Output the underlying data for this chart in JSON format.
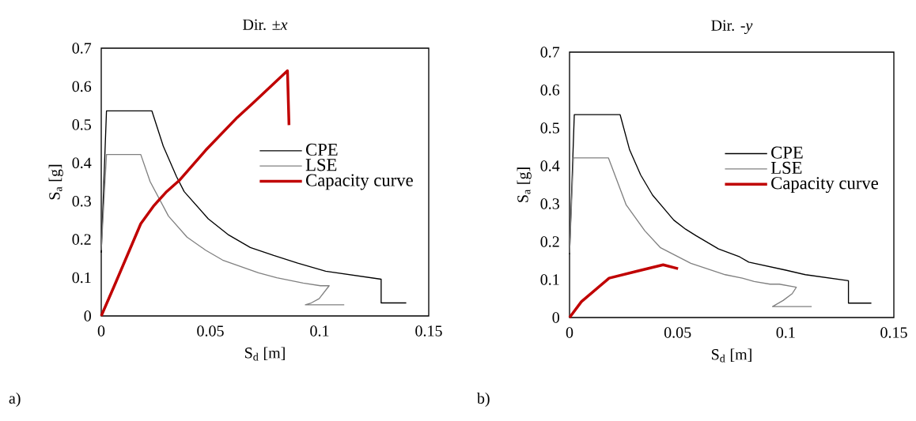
{
  "chart_data": [
    {
      "type": "line",
      "title": "Dir. ±*x*",
      "xlabel": "S$_{d}$ [m]",
      "ylabel": "S$_{a}$ [g]",
      "xlim": [
        0,
        0.15
      ],
      "ylim": [
        0,
        0.7
      ],
      "xticks": [
        0,
        0.05,
        0.1,
        0.15
      ],
      "yticks": [
        0,
        0.1,
        0.2,
        0.3,
        0.4,
        0.5,
        0.6,
        0.7
      ],
      "legend": "right",
      "annotations": [
        "a)"
      ],
      "series": [
        {
          "name": "CPE",
          "color": "#000000",
          "x": [
            0,
            0.0024,
            0.0232,
            0.0284,
            0.0345,
            0.038,
            0.049,
            0.058,
            0.0683,
            0.079,
            0.09,
            0.1028,
            0.1282,
            0.1282,
            0.1397
          ],
          "values": [
            0.165,
            0.536,
            0.536,
            0.444,
            0.364,
            0.325,
            0.254,
            0.213,
            0.179,
            0.158,
            0.138,
            0.117,
            0.096,
            0.034,
            0.034
          ]
        },
        {
          "name": "LSE",
          "color": "#808080",
          "x": [
            0,
            0.0024,
            0.0181,
            0.0224,
            0.0308,
            0.0393,
            0.0478,
            0.0556,
            0.072,
            0.0804,
            0.0925,
            0.1004,
            0.1044,
            0.0998,
            0.0962,
            0.0935,
            0.1113
          ],
          "values": [
            0.172,
            0.422,
            0.422,
            0.351,
            0.261,
            0.206,
            0.172,
            0.146,
            0.113,
            0.1,
            0.086,
            0.079,
            0.079,
            0.045,
            0.034,
            0.029,
            0.029
          ]
        },
        {
          "name": "Capacity curve",
          "color": "#c00000",
          "x": [
            0,
            0.006,
            0.0181,
            0.0242,
            0.0296,
            0.0357,
            0.0478,
            0.0623,
            0.0696,
            0.0853,
            0.086
          ],
          "values": [
            0,
            0.079,
            0.241,
            0.289,
            0.323,
            0.354,
            0.433,
            0.519,
            0.557,
            0.641,
            0.499
          ]
        }
      ]
    },
    {
      "type": "line",
      "title": "Dir. -*y*",
      "xlabel": "S$_{d}$ [m]",
      "ylabel": "S$_{a}$ [g]",
      "xlim": [
        0,
        0.15
      ],
      "ylim": [
        0,
        0.7
      ],
      "xticks": [
        0,
        0.05,
        0.1,
        0.15
      ],
      "yticks": [
        0,
        0.1,
        0.2,
        0.3,
        0.4,
        0.5,
        0.6,
        0.7
      ],
      "legend": "right",
      "annotations": [
        "b)"
      ],
      "series": [
        {
          "name": "CPE",
          "color": "#000000",
          "x": [
            0,
            0.0022,
            0.0234,
            0.0278,
            0.0329,
            0.0384,
            0.0482,
            0.0537,
            0.0585,
            0.0689,
            0.0787,
            0.0829,
            0.1,
            0.1091,
            0.129,
            0.129,
            0.1396
          ],
          "values": [
            0.167,
            0.535,
            0.535,
            0.442,
            0.376,
            0.323,
            0.257,
            0.233,
            0.216,
            0.181,
            0.16,
            0.146,
            0.125,
            0.113,
            0.097,
            0.038,
            0.038
          ]
        },
        {
          "name": "LSE",
          "color": "#808080",
          "x": [
            0,
            0.0018,
            0.018,
            0.0262,
            0.0348,
            0.0421,
            0.0561,
            0.072,
            0.0799,
            0.0854,
            0.0927,
            0.097,
            0.1049,
            0.103,
            0.0988,
            0.0939,
            0.112
          ],
          "values": [
            0.17,
            0.421,
            0.421,
            0.297,
            0.229,
            0.184,
            0.143,
            0.113,
            0.104,
            0.095,
            0.088,
            0.088,
            0.08,
            0.063,
            0.045,
            0.029,
            0.029
          ]
        },
        {
          "name": "Capacity curve",
          "color": "#c00000",
          "x": [
            0,
            0.0055,
            0.0183,
            0.0317,
            0.0433,
            0.0502
          ],
          "values": [
            0,
            0.042,
            0.104,
            0.123,
            0.139,
            0.129
          ]
        }
      ]
    }
  ]
}
